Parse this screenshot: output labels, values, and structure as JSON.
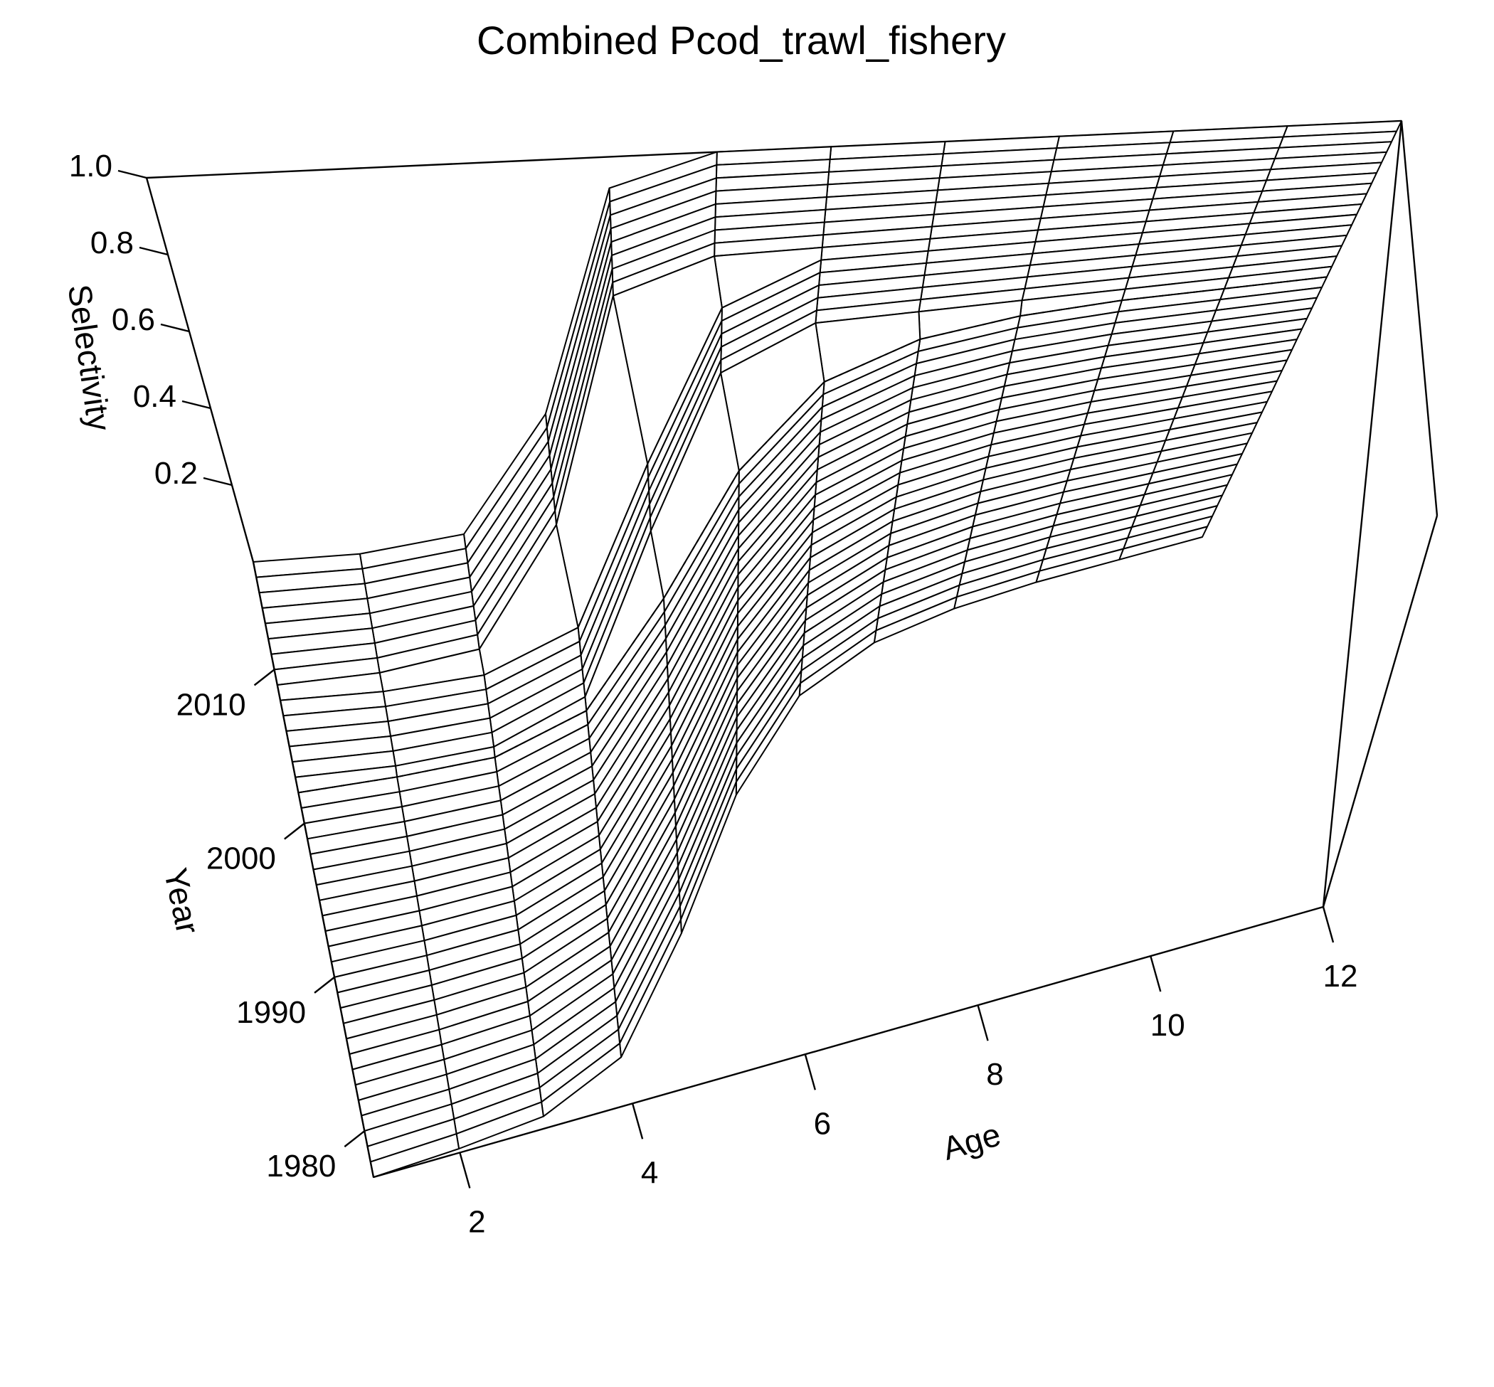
{
  "chart_data": {
    "type": "surface",
    "title": "Combined Pcod_trawl_fishery",
    "xlabel": "Age",
    "ylabel": "Year",
    "zlabel": "Selectivity",
    "x_ticks": [
      "2",
      "4",
      "6",
      "8",
      "10",
      "12"
    ],
    "y_ticks": [
      "1980",
      "1990",
      "2000",
      "2010"
    ],
    "z_ticks": [
      "0.2",
      "0.4",
      "0.6",
      "0.8",
      "1.0"
    ],
    "x_range": [
      1,
      12
    ],
    "y_range": [
      1977,
      2017
    ],
    "z_range": [
      0,
      1
    ],
    "ages": [
      1,
      2,
      3,
      4,
      5,
      6,
      7,
      8,
      9,
      10,
      11,
      12
    ],
    "year_periods": [
      {
        "years": [
          1977,
          2002
        ],
        "selectivity": [
          0.0,
          0.01,
          0.03,
          0.12,
          0.38,
          0.68,
          0.88,
          0.96,
          0.99,
          1.0,
          1.0,
          1.0
        ]
      },
      {
        "years": [
          2003,
          2008
        ],
        "selectivity": [
          0.0,
          0.0,
          0.02,
          0.12,
          0.52,
          0.9,
          1.0,
          1.0,
          1.0,
          1.0,
          1.0,
          1.0
        ]
      },
      {
        "years": [
          2009,
          2017
        ],
        "selectivity": [
          0.0,
          0.01,
          0.05,
          0.35,
          0.92,
          1.0,
          1.0,
          1.0,
          1.0,
          1.0,
          1.0,
          1.0
        ]
      }
    ],
    "reference_line": {
      "style": "dotted",
      "year": 2002
    },
    "grid": false,
    "legend": "none"
  }
}
